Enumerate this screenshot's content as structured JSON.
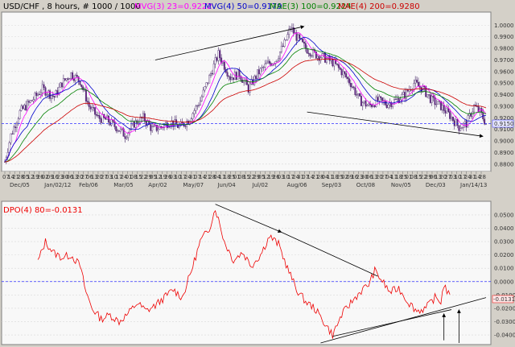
{
  "chart_data": [
    {
      "type": "candlestick",
      "title": "USD/CHF , 8 hours, # 1000 / 1000",
      "indicators": [
        {
          "name": "MVG(3) 23=0.9222",
          "color": "#ff00ff"
        },
        {
          "name": "MVG(4) 50=0.9179",
          "color": "#0000cc"
        },
        {
          "name": "MAE(3) 100=0.9224",
          "color": "#008000"
        },
        {
          "name": "MAE(4) 200=0.9280",
          "color": "#cc0000"
        }
      ],
      "ylim": [
        0.875,
        1.01
      ],
      "y_ticks": [
        "1.0000",
        "0.9900",
        "0.9800",
        "0.9700",
        "0.9600",
        "0.9500",
        "0.9400",
        "0.9300",
        "0.9200",
        "0.9100",
        "0.9000",
        "0.8900",
        "0.8800"
      ],
      "current_price_label": "0.9150",
      "current_price": 0.915,
      "x_day_ticks": [
        "07",
        "14",
        "21",
        "28",
        "05",
        "12",
        "19",
        "26",
        "02",
        "09",
        "16",
        "23",
        "30",
        "06",
        "13",
        "20",
        "27",
        "06",
        "13",
        "20",
        "27",
        "03",
        "10",
        "17",
        "24",
        "01",
        "08",
        "15",
        "22",
        "29",
        "05",
        "12",
        "19",
        "26",
        "03",
        "10",
        "17",
        "24",
        "31",
        "07",
        "14",
        "21",
        "28",
        "04",
        "11",
        "18",
        "25",
        "01",
        "08",
        "15",
        "22",
        "29",
        "05",
        "12",
        "19",
        "26",
        "03",
        "10",
        "17",
        "24",
        "31",
        "07",
        "14",
        "21",
        "28",
        "04",
        "11",
        "18",
        "25",
        "02",
        "09",
        "16",
        "23",
        "30",
        "06",
        "13",
        "20",
        "27",
        "04",
        "11",
        "18",
        "25",
        "01",
        "08",
        "15",
        "22",
        "29",
        "06",
        "13",
        "20",
        "27",
        "03",
        "10",
        "17",
        "24",
        "31",
        "14",
        "28"
      ],
      "x_month_labels": [
        "Dec/05",
        "Jan/02/12",
        "Feb/06",
        "Mar/05",
        "Apr/02",
        "May/07",
        "Jun/04",
        "Jul/02",
        "Aug/06",
        "Sep/03",
        "Oct/08",
        "Nov/05",
        "Dec/03",
        "Jan/14/13"
      ],
      "price_anchors": [
        [
          0,
          0.882
        ],
        [
          4,
          0.905
        ],
        [
          10,
          0.925
        ],
        [
          18,
          0.935
        ],
        [
          25,
          0.945
        ],
        [
          33,
          0.938
        ],
        [
          38,
          0.95
        ],
        [
          44,
          0.958
        ],
        [
          50,
          0.952
        ],
        [
          56,
          0.93
        ],
        [
          62,
          0.92
        ],
        [
          68,
          0.918
        ],
        [
          74,
          0.912
        ],
        [
          80,
          0.905
        ],
        [
          86,
          0.915
        ],
        [
          92,
          0.92
        ],
        [
          98,
          0.91
        ],
        [
          104,
          0.912
        ],
        [
          110,
          0.917
        ],
        [
          116,
          0.912
        ],
        [
          122,
          0.918
        ],
        [
          130,
          0.935
        ],
        [
          136,
          0.955
        ],
        [
          142,
          0.975
        ],
        [
          146,
          0.965
        ],
        [
          150,
          0.955
        ],
        [
          156,
          0.958
        ],
        [
          162,
          0.945
        ],
        [
          168,
          0.958
        ],
        [
          174,
          0.966
        ],
        [
          180,
          0.97
        ],
        [
          186,
          0.984
        ],
        [
          190,
          0.998
        ],
        [
          195,
          0.988
        ],
        [
          200,
          0.98
        ],
        [
          206,
          0.975
        ],
        [
          212,
          0.972
        ],
        [
          218,
          0.968
        ],
        [
          224,
          0.96
        ],
        [
          230,
          0.95
        ],
        [
          236,
          0.935
        ],
        [
          242,
          0.93
        ],
        [
          248,
          0.935
        ],
        [
          254,
          0.932
        ],
        [
          260,
          0.935
        ],
        [
          266,
          0.94
        ],
        [
          272,
          0.95
        ],
        [
          278,
          0.945
        ],
        [
          284,
          0.935
        ],
        [
          290,
          0.93
        ],
        [
          296,
          0.922
        ],
        [
          302,
          0.912
        ],
        [
          307,
          0.915
        ],
        [
          312,
          0.93
        ],
        [
          316,
          0.925
        ],
        [
          320,
          0.915
        ]
      ],
      "trend_lines": [
        {
          "from": [
            100,
            0.97
          ],
          "to": [
            199,
            0.999
          ],
          "arrow": true
        },
        {
          "from": [
            201,
            0.925
          ],
          "to": [
            318,
            0.904
          ],
          "arrow": true
        }
      ]
    },
    {
      "type": "line",
      "title": "DPO(4) 80=-0.0131",
      "color": "#ee0000",
      "ylim": [
        -0.046,
        0.059
      ],
      "y_ticks": [
        "0.0500",
        "0.0400",
        "0.0300",
        "0.0200",
        "0.0100",
        "0.0000",
        "-0.0100",
        "-0.0200",
        "-0.0300",
        "-0.0400"
      ],
      "current_value_label": "-0.0131",
      "current_value": -0.0131,
      "zero_line": 0.0,
      "dpo_anchors": [
        [
          22,
          0.015
        ],
        [
          27,
          0.03
        ],
        [
          32,
          0.022
        ],
        [
          38,
          0.018
        ],
        [
          44,
          0.02
        ],
        [
          50,
          0.012
        ],
        [
          54,
          -0.008
        ],
        [
          58,
          -0.02
        ],
        [
          64,
          -0.028
        ],
        [
          70,
          -0.025
        ],
        [
          76,
          -0.03
        ],
        [
          82,
          -0.024
        ],
        [
          88,
          -0.016
        ],
        [
          94,
          -0.022
        ],
        [
          100,
          -0.018
        ],
        [
          106,
          -0.012
        ],
        [
          112,
          -0.006
        ],
        [
          118,
          -0.012
        ],
        [
          124,
          0.008
        ],
        [
          130,
          0.03
        ],
        [
          136,
          0.04
        ],
        [
          140,
          0.055
        ],
        [
          146,
          0.03
        ],
        [
          152,
          0.016
        ],
        [
          158,
          0.022
        ],
        [
          164,
          0.012
        ],
        [
          170,
          0.02
        ],
        [
          176,
          0.034
        ],
        [
          182,
          0.028
        ],
        [
          188,
          0.01
        ],
        [
          194,
          -0.006
        ],
        [
          200,
          -0.015
        ],
        [
          206,
          -0.02
        ],
        [
          212,
          -0.03
        ],
        [
          218,
          -0.04
        ],
        [
          224,
          -0.025
        ],
        [
          230,
          -0.016
        ],
        [
          236,
          -0.008
        ],
        [
          242,
          -0.002
        ],
        [
          246,
          0.008
        ],
        [
          250,
          0.002
        ],
        [
          256,
          -0.008
        ],
        [
          262,
          -0.005
        ],
        [
          268,
          -0.015
        ],
        [
          274,
          -0.022
        ],
        [
          280,
          -0.02
        ],
        [
          286,
          -0.012
        ],
        [
          290,
          -0.015
        ],
        [
          292,
          -0.002
        ],
        [
          296,
          -0.012
        ]
      ],
      "trend_lines": [
        {
          "from": [
            140,
            0.058
          ],
          "to": [
            184,
            0.037
          ],
          "arrow": true
        },
        {
          "from": [
            184,
            0.037
          ],
          "to": [
            248,
            0.004
          ],
          "arrow": false
        },
        {
          "from": [
            210,
            -0.046
          ],
          "to": [
            320,
            -0.012
          ],
          "arrow": false
        },
        {
          "from": [
            218,
            -0.041
          ],
          "to": [
            297,
            -0.021
          ],
          "arrow": false
        }
      ],
      "up_arrows": [
        {
          "x": 292,
          "from": -0.044,
          "to": -0.024
        },
        {
          "x": 302,
          "from": -0.046,
          "to": -0.021
        }
      ]
    }
  ]
}
